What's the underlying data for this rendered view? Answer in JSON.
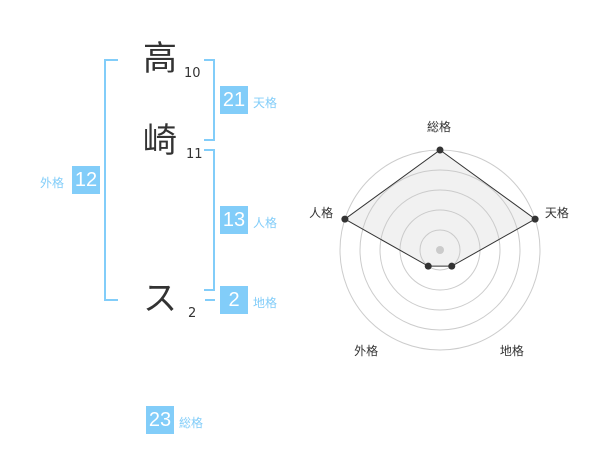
{
  "name_chars": [
    {
      "char": "高",
      "strokes": "10"
    },
    {
      "char": "崎",
      "strokes": "11"
    },
    {
      "char": "ス",
      "strokes": "2"
    }
  ],
  "kaku": {
    "tenkaku": {
      "value": "21",
      "label": "天格"
    },
    "jinkaku": {
      "value": "13",
      "label": "人格"
    },
    "chikaku": {
      "value": "2",
      "label": "地格"
    },
    "gaikaku": {
      "value": "12",
      "label": "外格"
    },
    "soukaku": {
      "value": "23",
      "label": "総格"
    }
  },
  "colors": {
    "accent": "#82cdf9",
    "text": "#333333"
  },
  "chart_data": {
    "type": "radar",
    "axes": [
      "総格",
      "天格",
      "地格",
      "外格",
      "人格"
    ],
    "values": [
      5,
      5,
      1,
      1,
      5
    ],
    "range": [
      0,
      5
    ],
    "rings": 5
  }
}
